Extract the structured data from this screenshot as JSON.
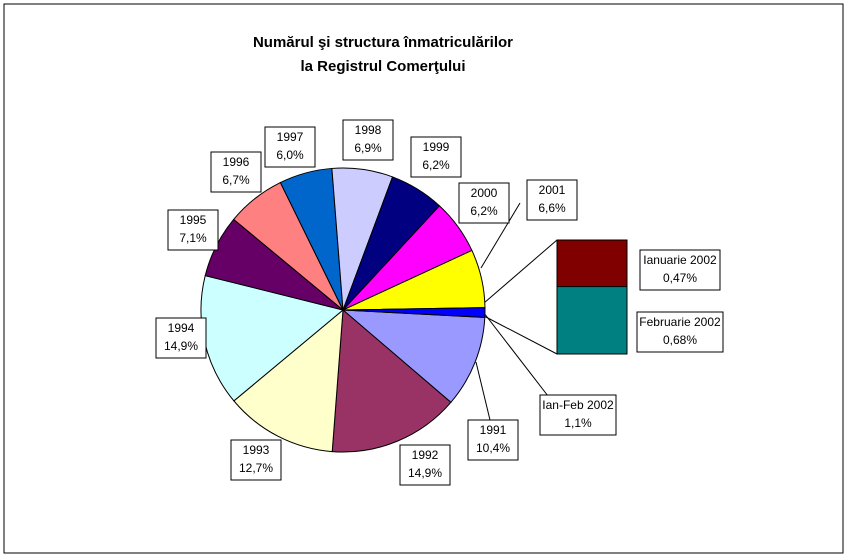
{
  "chart_data": {
    "type": "pie",
    "title": [
      "Numărul şi structura înmatriculărilor",
      "la Registrul Comerţului"
    ],
    "categories": [
      "1991",
      "1992",
      "1993",
      "1994",
      "1995",
      "1996",
      "1997",
      "1998",
      "1999",
      "2000",
      "2001",
      "Ian-Feb 2002"
    ],
    "values": [
      10.4,
      14.9,
      12.7,
      14.9,
      7.1,
      6.7,
      6.0,
      6.9,
      6.2,
      6.2,
      6.6,
      1.1
    ],
    "value_labels": [
      "10,4%",
      "14,9%",
      "12,7%",
      "14,9%",
      "7,1%",
      "6,7%",
      "6,0%",
      "6,9%",
      "6,2%",
      "6,2%",
      "6,6%",
      "1,1%"
    ],
    "colors": [
      "#9999ff",
      "#993366",
      "#ffffcc",
      "#ccffff",
      "#660066",
      "#ff8080",
      "#0066cc",
      "#ccccff",
      "#000080",
      "#ff00ff",
      "#ffff00",
      "#0000ff"
    ],
    "breakout": {
      "categories": [
        "Ianuarie 2002",
        "Februarie 2002"
      ],
      "values": [
        0.47,
        0.68
      ],
      "value_labels": [
        "0,47%",
        "0,68%"
      ],
      "colors": [
        "#800000",
        "#008080"
      ]
    }
  }
}
